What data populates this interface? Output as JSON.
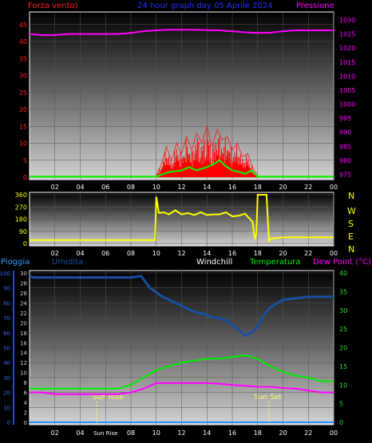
{
  "header": {
    "left_label": "Forza vento)",
    "title": "24 hour graph day  05 Aprile 2024",
    "right_label": "Pressione"
  },
  "mid": {
    "compass": [
      "N",
      "W",
      "S",
      "E",
      "N"
    ]
  },
  "bottom_header": {
    "pioggia": "Pioggia",
    "umidita": "Umidita",
    "windchill": "Windchill",
    "temperatura": "Temperatura",
    "dewpoint": "Dew Point (°C)"
  },
  "annotations": {
    "sunrise_label": "Sun Rise",
    "sunset_label": "Sun Set",
    "sunrise_tick": "Sun Rise"
  },
  "colors": {
    "wind": "#ff0000",
    "gust": "#00ff00",
    "pressure": "#ff00ff",
    "direction": "#ffff00",
    "humidity": "#1a4fa0",
    "rain": "#1e90ff",
    "temperature": "#00ee00",
    "dewpoint": "#ff00ff",
    "axis_wind": "#ff2020",
    "axis_pressure": "#ff00ff",
    "axis_temp": "#33dd33",
    "axis_hum": "#3366ff",
    "annotation": "#ffff66",
    "text": "#ffffff"
  },
  "chart_data": [
    {
      "type": "line",
      "name": "wind-pressure",
      "x_ticks": [
        "02",
        "04",
        "06",
        "08",
        "10",
        "12",
        "14",
        "16",
        "18",
        "20",
        "22",
        "00"
      ],
      "y_left": {
        "label": "Forza vento)",
        "ticks": [
          0,
          5,
          10,
          15,
          20,
          25,
          30,
          35,
          40,
          45
        ],
        "range": [
          0,
          48
        ]
      },
      "y_right": {
        "label": "Pressione",
        "ticks": [
          975,
          980,
          985,
          990,
          995,
          1000,
          1005,
          1010,
          1015,
          1020,
          1025,
          1030
        ],
        "range": [
          974,
          1032
        ]
      },
      "series": [
        {
          "key": "pressure",
          "axis": "right",
          "x": [
            0,
            1,
            2,
            3,
            4,
            5,
            6,
            7,
            8,
            9,
            10,
            11,
            12,
            13,
            14,
            15,
            16,
            17,
            18,
            19,
            20,
            21,
            22,
            23,
            24
          ],
          "y": [
            1025,
            1024.6,
            1024.6,
            1025,
            1025,
            1025,
            1025,
            1025,
            1025.4,
            1026,
            1026.3,
            1026.5,
            1026.5,
            1026.5,
            1026.4,
            1026.3,
            1026,
            1025.6,
            1025.4,
            1025.5,
            1026,
            1026.3,
            1026.3,
            1026.3,
            1026.3
          ]
        },
        {
          "key": "wind",
          "axis": "left",
          "x": [
            0,
            10,
            10.4,
            10.8,
            11.2,
            11.6,
            12,
            12.4,
            12.8,
            13.2,
            13.6,
            14,
            14.4,
            14.8,
            15.2,
            15.6,
            16,
            16.4,
            16.8,
            17.2,
            17.6,
            18,
            24
          ],
          "y": [
            0.3,
            0.3,
            4,
            9,
            5,
            10,
            7,
            12,
            8,
            13,
            10,
            15,
            9,
            14,
            11,
            12,
            8,
            10,
            6,
            7,
            3,
            0.3,
            0.3
          ]
        },
        {
          "key": "gust",
          "axis": "left",
          "x": [
            0,
            10,
            11,
            12,
            12.6,
            13.2,
            14,
            14.6,
            15,
            15.4,
            16,
            16.6,
            17,
            17.5,
            18,
            24
          ],
          "y": [
            0.2,
            0.2,
            1.5,
            2,
            3,
            2,
            3,
            4,
            5,
            3.5,
            2,
            1.5,
            1,
            2,
            0.2,
            0.2
          ]
        }
      ]
    },
    {
      "type": "line",
      "name": "wind-direction",
      "x_ticks": [
        "02",
        "04",
        "06",
        "08",
        "10",
        "12",
        "14",
        "16",
        "18",
        "20",
        "22",
        "00"
      ],
      "y_left": {
        "ticks": [
          0,
          90,
          180,
          270,
          360
        ],
        "range": [
          0,
          360
        ]
      },
      "series": [
        {
          "key": "direction",
          "x": [
            0,
            9.9,
            10,
            10.2,
            10.6,
            11,
            11.5,
            12,
            12.5,
            13,
            13.5,
            14,
            14.5,
            15,
            15.5,
            16,
            16.5,
            17,
            17.3,
            17.6,
            17.7,
            17.8,
            17.9,
            18,
            18.1,
            18.6,
            18.7,
            18.9,
            19,
            20,
            21,
            22,
            24
          ],
          "y": [
            25,
            25,
            345,
            225,
            230,
            215,
            245,
            215,
            225,
            210,
            230,
            210,
            215,
            215,
            230,
            200,
            205,
            220,
            190,
            160,
            80,
            30,
            70,
            360,
            360,
            360,
            360,
            10,
            35,
            45,
            45,
            45,
            45
          ]
        }
      ]
    },
    {
      "type": "line",
      "name": "temperature-humidity",
      "x_ticks": [
        "02",
        "04",
        "Sun Rise",
        "08",
        "10",
        "12",
        "14",
        "16",
        "18",
        "20",
        "22",
        "00"
      ],
      "y_left_humidity": {
        "label": "Umidita",
        "ticks": [
          0,
          10,
          20,
          30,
          40,
          50,
          60,
          70,
          80,
          90,
          100
        ],
        "range": [
          0,
          100
        ]
      },
      "y_left_rain": {
        "label": "Pioggia",
        "ticks": [
          0,
          2,
          4,
          6,
          8,
          10,
          12,
          14,
          16,
          18,
          20,
          22,
          24,
          26,
          28,
          30
        ],
        "range": [
          0,
          30
        ]
      },
      "y_right": {
        "label": "Dew Point (°C)",
        "ticks": [
          0,
          5,
          10,
          15,
          20,
          25,
          30,
          35,
          40
        ],
        "range": [
          0,
          40
        ]
      },
      "series": [
        {
          "key": "humidity",
          "axis": "left_humidity",
          "x": [
            0,
            0.3,
            2,
            4,
            6,
            7,
            8,
            8.8,
            9.5,
            10.5,
            11.5,
            12.5,
            13,
            13.5,
            14,
            14.5,
            15,
            15.5,
            16,
            16.5,
            17,
            17.5,
            18,
            18.5,
            19,
            20,
            21,
            22,
            23,
            24
          ],
          "y": [
            98,
            97,
            97,
            97,
            97,
            97,
            97,
            98,
            90,
            84,
            80,
            76,
            74,
            73,
            72,
            70,
            70,
            68,
            65,
            62,
            58,
            60,
            64,
            72,
            77,
            82,
            83,
            84,
            84,
            84
          ]
        },
        {
          "key": "temperature",
          "axis": "right",
          "x": [
            0,
            1,
            2,
            3,
            4,
            5,
            6,
            7,
            8,
            9,
            10,
            11,
            12,
            13,
            14,
            15,
            16,
            17,
            18,
            19,
            20,
            21,
            22,
            23,
            24
          ],
          "y": [
            9,
            9,
            9,
            9,
            9,
            9,
            9,
            9,
            10,
            12,
            14,
            15,
            16,
            16.5,
            17,
            17,
            17.5,
            18,
            17,
            15,
            13.5,
            12.5,
            12,
            11,
            11
          ]
        },
        {
          "key": "dewpoint",
          "axis": "right",
          "x": [
            0,
            1,
            2,
            3,
            4,
            5,
            6,
            7,
            8,
            9,
            10,
            11,
            12,
            13,
            14,
            15,
            16,
            17,
            18,
            19,
            20,
            21,
            22,
            23,
            24
          ],
          "y": [
            8,
            8,
            7.5,
            7.5,
            7.5,
            7.5,
            7.5,
            7.5,
            8,
            9,
            10.5,
            10.5,
            10.5,
            10.5,
            10.5,
            10.3,
            10,
            9.8,
            9.5,
            9.5,
            9.2,
            9,
            8.5,
            8,
            8
          ]
        },
        {
          "key": "rain",
          "axis": "left_rain",
          "x": [
            0,
            24
          ],
          "y": [
            0,
            0
          ]
        }
      ],
      "markers": [
        {
          "label": "Sun Rise",
          "x": 5.3
        },
        {
          "label": "Sun Set",
          "x": 18.9
        }
      ]
    }
  ]
}
